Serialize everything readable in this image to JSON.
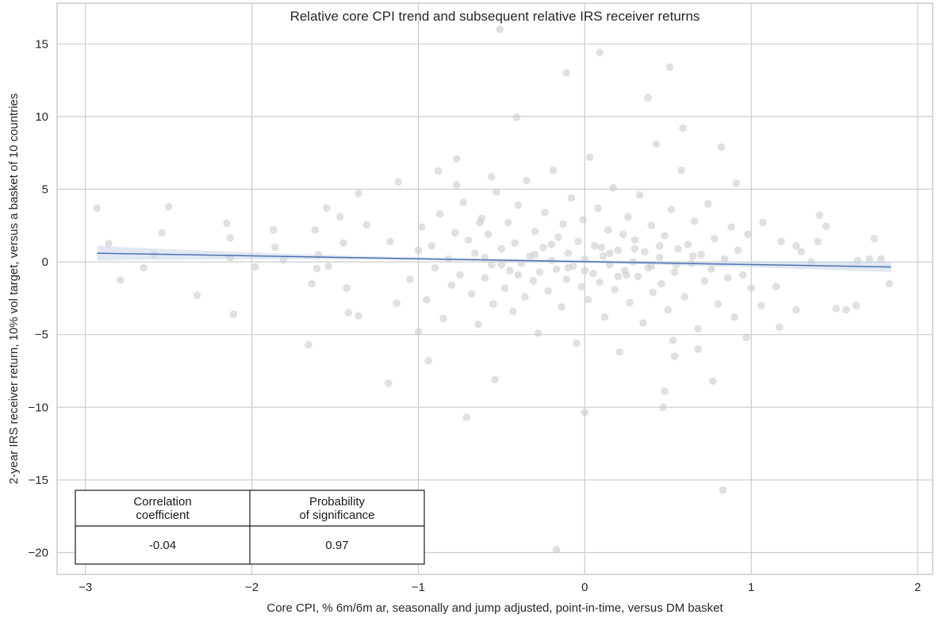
{
  "chart_data": {
    "type": "scatter",
    "title": "Relative core CPI trend and subsequent relative IRS receiver returns",
    "xlabel": "Core CPI, % 6m/6m ar, seasonally and jump adjusted, point-in-time, versus DM basket",
    "ylabel": "2-year IRS receiver return, 10% vol target, versus a basket of 10 countries",
    "xlim": [
      -3.17,
      2.09
    ],
    "ylim": [
      -21.5,
      17.8
    ],
    "xticks": [
      -3,
      -2,
      -1,
      0,
      1,
      2
    ],
    "xtick_labels": [
      "−3",
      "−2",
      "−1",
      "0",
      "1",
      "2"
    ],
    "yticks": [
      15,
      10,
      5,
      0,
      -5,
      -10,
      -15,
      -20
    ],
    "ytick_labels": [
      "15",
      "10",
      "5",
      "0",
      "−5",
      "−10",
      "−15",
      "−20"
    ],
    "grid": true,
    "colors": {
      "points": "#cccccc",
      "regression": "#4c72b0",
      "band": "#c9d6ea"
    },
    "regression": {
      "x": [
        -2.93,
        1.84
      ],
      "y": [
        0.6,
        -0.35
      ],
      "ci_halfwidth_ends": [
        0.5,
        0.35
      ],
      "ci_halfwidth_center": 0.08
    },
    "points": [
      [
        -2.93,
        3.7
      ],
      [
        -2.86,
        1.25
      ],
      [
        -2.79,
        -1.25
      ],
      [
        -2.65,
        -0.4
      ],
      [
        -2.59,
        0.5
      ],
      [
        -2.54,
        2.0
      ],
      [
        -2.5,
        3.8
      ],
      [
        -2.33,
        -2.3
      ],
      [
        -2.15,
        2.65
      ],
      [
        -2.13,
        1.65
      ],
      [
        -2.13,
        0.3
      ],
      [
        -2.11,
        -3.6
      ],
      [
        -1.98,
        -0.35
      ],
      [
        -1.87,
        2.2
      ],
      [
        -1.86,
        1.0
      ],
      [
        -1.81,
        0.15
      ],
      [
        -1.66,
        -5.7
      ],
      [
        -1.64,
        -1.5
      ],
      [
        -1.62,
        2.2
      ],
      [
        -1.61,
        -0.45
      ],
      [
        -1.6,
        0.5
      ],
      [
        -1.55,
        3.7
      ],
      [
        -1.54,
        -0.3
      ],
      [
        -1.47,
        3.1
      ],
      [
        -1.45,
        1.3
      ],
      [
        -1.43,
        -1.8
      ],
      [
        -1.42,
        -3.5
      ],
      [
        -1.36,
        4.7
      ],
      [
        -1.36,
        -3.7
      ],
      [
        -1.31,
        2.55
      ],
      [
        -1.18,
        -8.35
      ],
      [
        -1.17,
        1.4
      ],
      [
        -1.13,
        -2.85
      ],
      [
        -1.12,
        5.5
      ],
      [
        -1.0,
        -4.8
      ],
      [
        -0.94,
        -6.8
      ],
      [
        -0.88,
        6.25
      ],
      [
        -0.77,
        5.3
      ],
      [
        -0.77,
        7.1
      ],
      [
        -0.71,
        -10.7
      ],
      [
        -0.63,
        2.7
      ],
      [
        -0.56,
        5.85
      ],
      [
        -0.54,
        -8.1
      ],
      [
        -0.51,
        16.0
      ],
      [
        -0.41,
        9.95
      ],
      [
        -0.11,
        13.0
      ],
      [
        -0.17,
        -19.8
      ],
      [
        0.0,
        -10.35
      ],
      [
        0.09,
        14.4
      ],
      [
        0.38,
        11.3
      ],
      [
        0.48,
        -8.9
      ],
      [
        0.47,
        -10.0
      ],
      [
        0.51,
        13.4
      ],
      [
        0.59,
        9.2
      ],
      [
        0.83,
        -15.7
      ],
      [
        0.53,
        -5.4
      ],
      [
        0.68,
        -6.0
      ],
      [
        0.77,
        -8.2
      ],
      [
        0.91,
        5.4
      ],
      [
        1.07,
        2.7
      ],
      [
        1.15,
        -1.7
      ],
      [
        1.18,
        1.4
      ],
      [
        1.27,
        1.1
      ],
      [
        1.27,
        -3.3
      ],
      [
        1.3,
        0.7
      ],
      [
        1.36,
        0.0
      ],
      [
        1.4,
        1.4
      ],
      [
        1.41,
        3.2
      ],
      [
        1.45,
        2.45
      ],
      [
        1.51,
        -3.2
      ],
      [
        1.57,
        -3.3
      ],
      [
        1.63,
        -3.0
      ],
      [
        1.64,
        0.1
      ],
      [
        1.71,
        0.2
      ],
      [
        1.74,
        1.6
      ],
      [
        1.78,
        0.2
      ],
      [
        1.83,
        -1.5
      ],
      [
        1.17,
        -4.5
      ],
      [
        1.06,
        -3.0
      ],
      [
        0.97,
        -5.2
      ],
      [
        0.54,
        -6.5
      ],
      [
        -1.05,
        -1.2
      ],
      [
        -1.0,
        0.8
      ],
      [
        -0.98,
        2.4
      ],
      [
        -0.95,
        -2.6
      ],
      [
        -0.92,
        1.1
      ],
      [
        -0.9,
        -0.4
      ],
      [
        -0.87,
        3.3
      ],
      [
        -0.85,
        -3.9
      ],
      [
        -0.82,
        0.2
      ],
      [
        -0.8,
        -1.6
      ],
      [
        -0.78,
        2.0
      ],
      [
        -0.75,
        -0.9
      ],
      [
        -0.73,
        4.1
      ],
      [
        -0.7,
        1.5
      ],
      [
        -0.68,
        -2.2
      ],
      [
        -0.66,
        0.6
      ],
      [
        -0.64,
        -4.3
      ],
      [
        -0.62,
        3.0
      ],
      [
        -0.6,
        -1.1
      ],
      [
        -0.58,
        1.9
      ],
      [
        -0.56,
        -0.2
      ],
      [
        -0.55,
        -2.9
      ],
      [
        -0.53,
        4.8
      ],
      [
        -0.5,
        0.9
      ],
      [
        -0.48,
        -1.8
      ],
      [
        -0.46,
        2.7
      ],
      [
        -0.45,
        -0.6
      ],
      [
        -0.43,
        -3.4
      ],
      [
        -0.42,
        1.3
      ],
      [
        -0.4,
        3.9
      ],
      [
        -0.38,
        -0.1
      ],
      [
        -0.36,
        -2.4
      ],
      [
        -0.35,
        5.6
      ],
      [
        -0.33,
        0.4
      ],
      [
        -0.31,
        -1.3
      ],
      [
        -0.3,
        2.1
      ],
      [
        -0.28,
        -4.9
      ],
      [
        -0.27,
        -0.7
      ],
      [
        -0.25,
        1.0
      ],
      [
        -0.24,
        3.4
      ],
      [
        -0.22,
        -2.0
      ],
      [
        -0.2,
        0.1
      ],
      [
        -0.19,
        6.3
      ],
      [
        -0.17,
        -0.5
      ],
      [
        -0.16,
        1.7
      ],
      [
        -0.14,
        -3.1
      ],
      [
        -0.13,
        2.6
      ],
      [
        -0.11,
        -1.2
      ],
      [
        -0.1,
        0.6
      ],
      [
        -0.08,
        4.4
      ],
      [
        -0.07,
        -0.3
      ],
      [
        -0.05,
        -5.6
      ],
      [
        -0.04,
        1.4
      ],
      [
        -0.02,
        -1.7
      ],
      [
        -0.01,
        2.9
      ],
      [
        0.0,
        0.2
      ],
      [
        0.02,
        -2.6
      ],
      [
        0.03,
        7.2
      ],
      [
        0.05,
        -0.8
      ],
      [
        0.06,
        1.1
      ],
      [
        0.08,
        3.7
      ],
      [
        0.09,
        -1.4
      ],
      [
        0.11,
        0.4
      ],
      [
        0.12,
        -3.8
      ],
      [
        0.14,
        2.2
      ],
      [
        0.15,
        -0.2
      ],
      [
        0.17,
        5.1
      ],
      [
        0.18,
        -1.9
      ],
      [
        0.2,
        0.8
      ],
      [
        0.21,
        -6.2
      ],
      [
        0.23,
        1.9
      ],
      [
        0.24,
        -0.6
      ],
      [
        0.26,
        3.1
      ],
      [
        0.27,
        -2.8
      ],
      [
        0.29,
        0.0
      ],
      [
        0.3,
        1.5
      ],
      [
        0.32,
        -1.0
      ],
      [
        0.33,
        4.6
      ],
      [
        0.35,
        -4.2
      ],
      [
        0.36,
        0.7
      ],
      [
        0.38,
        -0.4
      ],
      [
        0.4,
        2.5
      ],
      [
        0.41,
        -2.1
      ],
      [
        0.43,
        8.1
      ],
      [
        0.45,
        0.3
      ],
      [
        0.46,
        -1.5
      ],
      [
        0.48,
        1.8
      ],
      [
        0.5,
        -3.3
      ],
      [
        0.52,
        3.6
      ],
      [
        0.54,
        -0.7
      ],
      [
        0.56,
        0.9
      ],
      [
        0.58,
        6.3
      ],
      [
        0.6,
        -2.4
      ],
      [
        0.62,
        1.2
      ],
      [
        0.64,
        -0.1
      ],
      [
        0.66,
        2.8
      ],
      [
        0.68,
        -4.6
      ],
      [
        0.7,
        0.5
      ],
      [
        0.72,
        -1.3
      ],
      [
        0.74,
        4.0
      ],
      [
        0.76,
        -0.5
      ],
      [
        0.78,
        1.6
      ],
      [
        0.8,
        -2.9
      ],
      [
        0.82,
        7.9
      ],
      [
        0.84,
        0.2
      ],
      [
        0.86,
        -1.1
      ],
      [
        0.88,
        2.4
      ],
      [
        0.9,
        -3.8
      ],
      [
        0.92,
        0.8
      ],
      [
        0.95,
        -0.9
      ],
      [
        0.98,
        1.9
      ],
      [
        1.0,
        -1.8
      ],
      [
        -0.6,
        0.3
      ],
      [
        -0.4,
        -0.9
      ],
      [
        -0.2,
        1.2
      ],
      [
        0.0,
        -0.6
      ],
      [
        0.1,
        1.0
      ],
      [
        0.2,
        -1.0
      ],
      [
        0.3,
        0.9
      ],
      [
        0.4,
        -0.3
      ],
      [
        -0.3,
        0.5
      ],
      [
        -0.1,
        -0.4
      ],
      [
        0.15,
        0.6
      ],
      [
        0.25,
        -0.9
      ],
      [
        0.45,
        1.1
      ],
      [
        0.55,
        -0.2
      ],
      [
        0.65,
        0.4
      ],
      [
        -0.5,
        -0.2
      ]
    ],
    "stats_table": {
      "headers": [
        "Correlation\ncoefficient",
        "Probability\nof significance"
      ],
      "header_lines": [
        [
          "Correlation",
          "coefficient"
        ],
        [
          "Probability",
          "of significance"
        ]
      ],
      "values": [
        "-0.04",
        "0.97"
      ]
    }
  }
}
